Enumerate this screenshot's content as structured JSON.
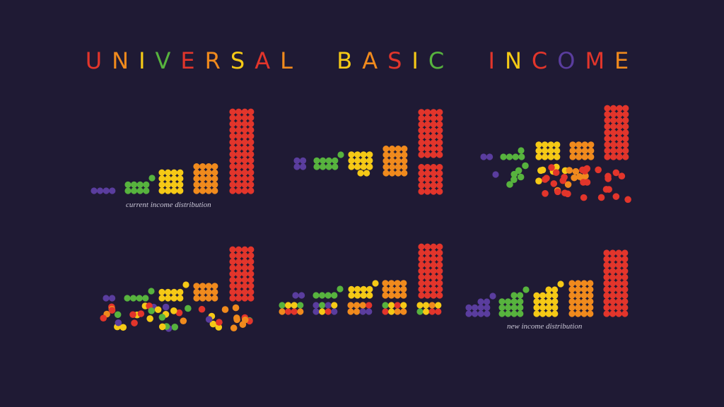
{
  "title": "UNIVERSAL BASIC INCOME",
  "title_letter_colors": [
    "#e2352b",
    "#f08a1d",
    "#f5c916",
    "#57b33e",
    "#e2352b",
    "#f08a1d",
    "#f5c916",
    "#e2352b",
    "#f08a1d",
    "#f5c916",
    "#f08a1d",
    "#e2352b",
    "#f5c916",
    "#57b33e",
    "#e2352b",
    "#f5c916",
    "#e2352b",
    "#5a3d9e",
    "#e2352b",
    "#f08a1d"
  ],
  "captions": {
    "current": "current income distribution",
    "new": "new income distribution"
  },
  "colors": {
    "background": "#1f1a34",
    "purple": "#5a3d9e",
    "green": "#57b33e",
    "yellow": "#f5c916",
    "orange": "#f08a1d",
    "red": "#e2352b"
  },
  "groups": [
    "purple",
    "green",
    "yellow",
    "orange",
    "red"
  ]
}
